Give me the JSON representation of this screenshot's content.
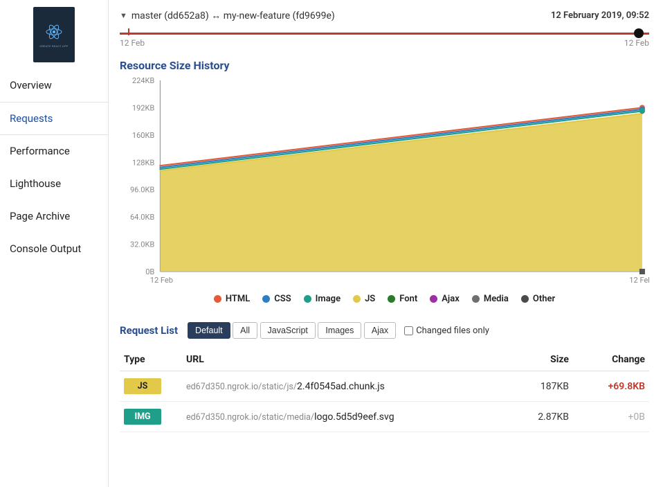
{
  "sidebar": {
    "items": [
      {
        "label": "Overview"
      },
      {
        "label": "Requests"
      },
      {
        "label": "Performance"
      },
      {
        "label": "Lighthouse"
      },
      {
        "label": "Page Archive"
      },
      {
        "label": "Console Output"
      }
    ],
    "active_index": 1,
    "logo_caption": "CREATE REACT APP"
  },
  "header": {
    "branch_text": "master (dd652a8) ↔ my-new-feature (fd9699e)",
    "timestamp": "12 February 2019, 09:52",
    "timeline": {
      "track_color": "#c0392b",
      "knob_color": "#111111",
      "label_left": "12 Feb",
      "label_right": "12 Feb"
    }
  },
  "chart": {
    "title": "Resource Size History",
    "type": "area",
    "x_labels": [
      "12 Feb",
      "12 Feb"
    ],
    "y_ticks": [
      "0B",
      "32.0KB",
      "64.0KB",
      "96.0KB",
      "128KB",
      "160KB",
      "192KB",
      "224KB"
    ],
    "y_max_kb": 224,
    "series": [
      {
        "name": "HTML",
        "color": "#e25b3a",
        "start_kb": 124,
        "end_kb": 192
      },
      {
        "name": "CSS",
        "color": "#2f7ec2",
        "start_kb": 122,
        "end_kb": 190
      },
      {
        "name": "Image",
        "color": "#1f9e8a",
        "start_kb": 120,
        "end_kb": 188
      },
      {
        "name": "JS",
        "color": "#e2c94a",
        "start_kb": 118,
        "end_kb": 185
      },
      {
        "name": "Font",
        "color": "#2a7a2a",
        "start_kb": 0,
        "end_kb": 0
      },
      {
        "name": "Ajax",
        "color": "#9b2fa3",
        "start_kb": 0,
        "end_kb": 0
      },
      {
        "name": "Media",
        "color": "#6f6f6f",
        "start_kb": 0,
        "end_kb": 0
      },
      {
        "name": "Other",
        "color": "#4b4b4b",
        "start_kb": 0,
        "end_kb": 0
      }
    ],
    "fill_color": "#e2c94a",
    "grid_color": "#dddddd",
    "axis_color": "#888888",
    "marker_end_square_color": "#555555",
    "legend_order": [
      "HTML",
      "CSS",
      "Image",
      "JS",
      "Font",
      "Ajax",
      "Media",
      "Other"
    ]
  },
  "request_list": {
    "title": "Request List",
    "filters": [
      {
        "label": "Default",
        "active": true
      },
      {
        "label": "All",
        "active": false
      },
      {
        "label": "JavaScript",
        "active": false
      },
      {
        "label": "Images",
        "active": false
      },
      {
        "label": "Ajax",
        "active": false
      }
    ],
    "changed_only_label": "Changed files only",
    "changed_only_checked": false,
    "columns": {
      "type": "Type",
      "url": "URL",
      "size": "Size",
      "change": "Change"
    },
    "rows": [
      {
        "type": "JS",
        "type_bg": "#e2c94a",
        "type_fg": "#222222",
        "url_host": "ed67d350.ngrok.io/static/js/",
        "url_file": "2.4f0545ad.chunk.js",
        "size": "187KB",
        "change": "+69.8KB",
        "change_class": "pos"
      },
      {
        "type": "IMG",
        "type_bg": "#1f9e8a",
        "type_fg": "#ffffff",
        "url_host": "ed67d350.ngrok.io/static/media/",
        "url_file": "logo.5d5d9eef.svg",
        "size": "2.87KB",
        "change": "+0B",
        "change_class": "zero"
      }
    ]
  }
}
